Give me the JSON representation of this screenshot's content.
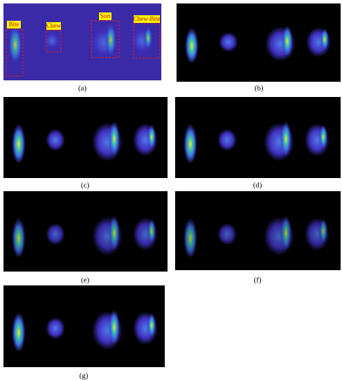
{
  "panel_a": {
    "labels": [
      "Bite",
      "Chew",
      "Sort",
      "Chew-Bite"
    ]
  },
  "captions": [
    "(a)",
    "(b)",
    "(c)",
    "(d)",
    "(e)",
    "(f)",
    "(g)"
  ]
}
